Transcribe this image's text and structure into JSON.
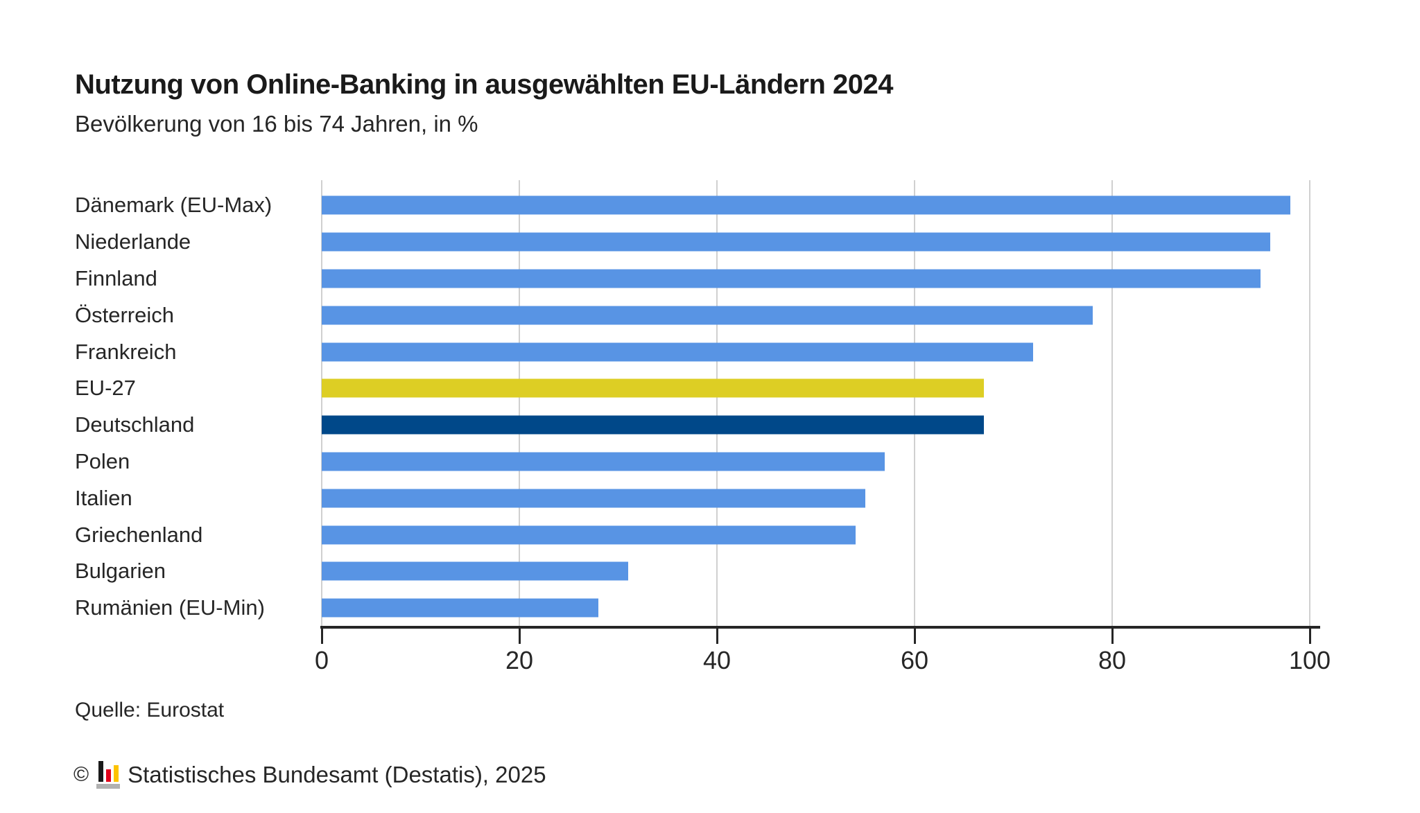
{
  "header": {
    "title": "Nutzung von Online-Banking in ausgewählten EU-Ländern 2024",
    "subtitle": "Bevölkerung von 16 bis 74 Jahren, in %"
  },
  "footer": {
    "source": "Quelle: Eurostat",
    "copyright_symbol": "©",
    "copyright_text": "Statistisches Bundesamt (Destatis), 2025"
  },
  "colors": {
    "bar_default": "#5894E4",
    "bar_eu_highlight": "#DDCE24",
    "bar_germany_highlight": "#004889",
    "axis": "#262626",
    "gridline": "#d0d0d0",
    "text": "#262626",
    "logo_black": "#1a1a1a",
    "logo_red": "#e2001a",
    "logo_gold": "#fdc300",
    "logo_base_gray": "#b1b1b1"
  },
  "chart_data": {
    "type": "bar",
    "orientation": "horizontal",
    "title": "Nutzung von Online-Banking in ausgewählten EU-Ländern 2024",
    "subtitle": "Bevölkerung von 16 bis 74 Jahren, in %",
    "unit": "%",
    "categories": [
      "Dänemark (EU-Max)",
      "Niederlande",
      "Finnland",
      "Österreich",
      "Frankreich",
      "EU-27",
      "Deutschland",
      "Polen",
      "Italien",
      "Griechenland",
      "Bulgarien",
      "Rumänien (EU-Min)"
    ],
    "values": [
      98,
      96,
      95,
      78,
      72,
      67,
      67,
      57,
      55,
      54,
      31,
      28
    ],
    "bar_color_keys": [
      "bar_default",
      "bar_default",
      "bar_default",
      "bar_default",
      "bar_default",
      "bar_eu_highlight",
      "bar_germany_highlight",
      "bar_default",
      "bar_default",
      "bar_default",
      "bar_default",
      "bar_default"
    ],
    "xlim": [
      0,
      100
    ],
    "x_ticks": [
      0,
      20,
      40,
      60,
      80,
      100
    ],
    "grid": "vertical",
    "legend": "none",
    "source": "Quelle: Eurostat"
  }
}
